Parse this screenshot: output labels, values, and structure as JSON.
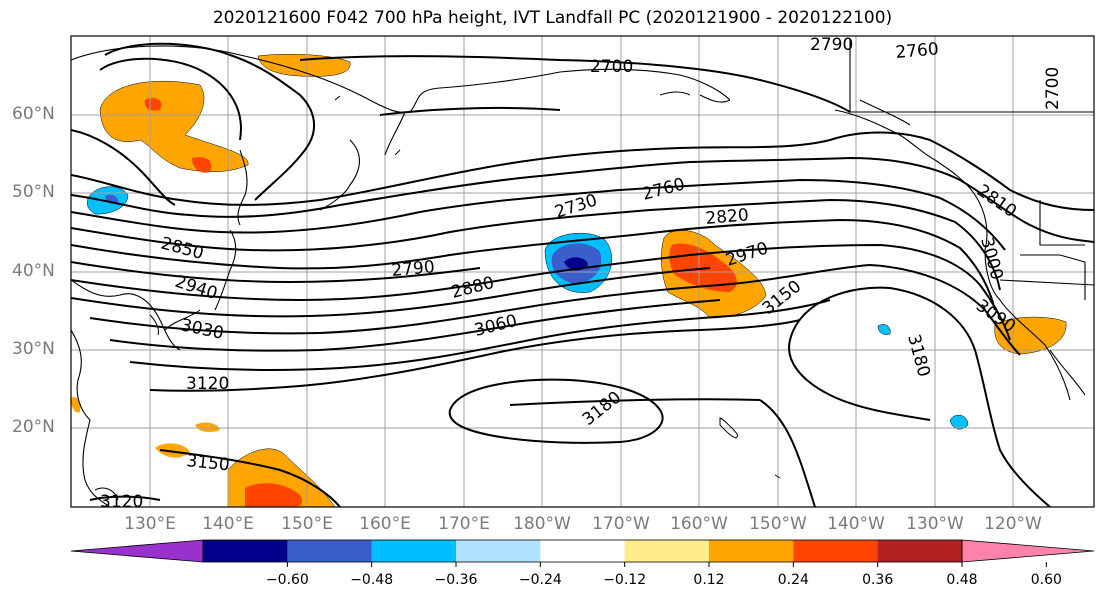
{
  "title": "2020121600 F042 700 hPa height, IVT Landfall PC (2020121900 - 2020122100)",
  "map": {
    "lat_labels": [
      "60°N",
      "50°N",
      "40°N",
      "30°N",
      "20°N"
    ],
    "lon_labels": [
      "130°E",
      "140°E",
      "150°E",
      "160°E",
      "170°E",
      "180°W",
      "170°W",
      "160°W",
      "150°W",
      "140°W",
      "130°W",
      "120°W"
    ],
    "height_contour_labels": [
      "2700",
      "2790",
      "2760",
      "2700",
      "2730",
      "2760",
      "2820",
      "2970",
      "2790",
      "2880",
      "3060",
      "3150",
      "2810",
      "3000",
      "3090",
      "3180",
      "3180",
      "2850",
      "2940",
      "3030",
      "3120",
      "3150",
      "3120"
    ],
    "land_color": "#000000",
    "grid_color": "#a0a0a0"
  },
  "colorbar": {
    "tick_labels": [
      "−0.60",
      "−0.48",
      "−0.36",
      "−0.24",
      "−0.12",
      "0.12",
      "0.24",
      "0.36",
      "0.48",
      "0.60"
    ],
    "colors": [
      "#9932cc",
      "#00008b",
      "#3a5fcd",
      "#00bfff",
      "#b0e2ff",
      "#ffffff",
      "#ffec8b",
      "#ffa500",
      "#ff4500",
      "#b22222",
      "#ff82ab"
    ]
  }
}
